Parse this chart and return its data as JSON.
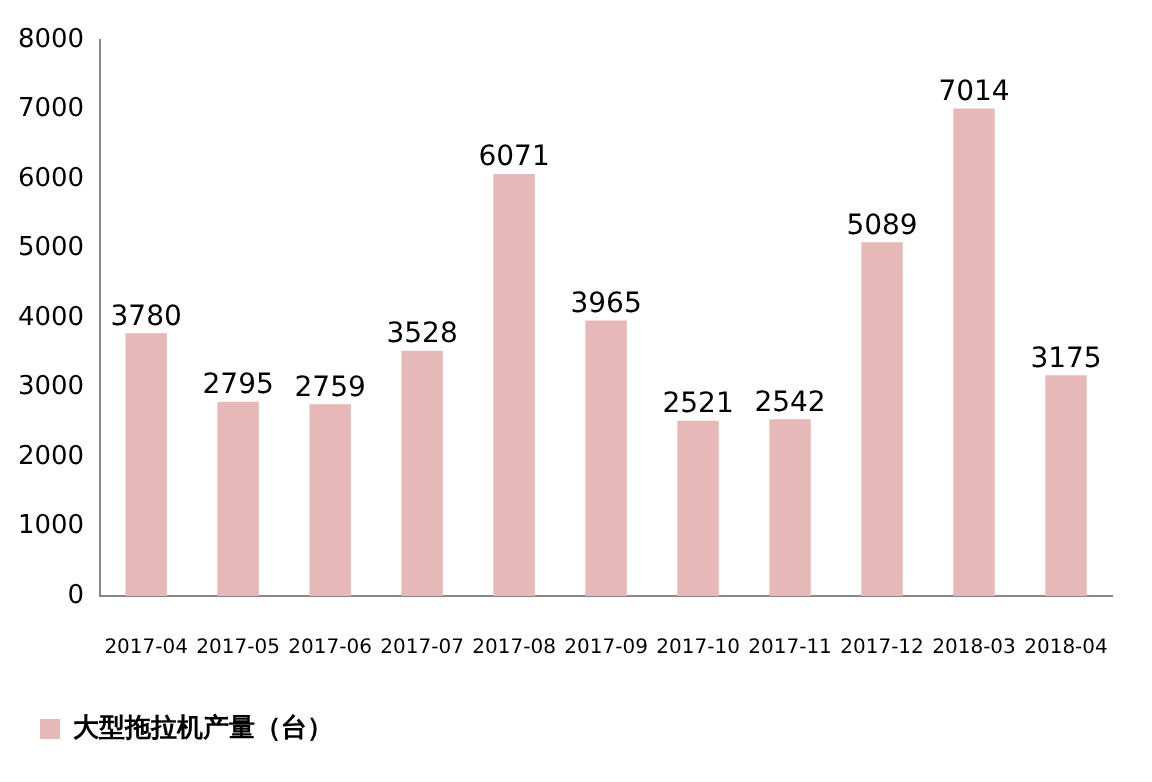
{
  "chart_data": {
    "type": "bar",
    "categories": [
      "2017-04",
      "2017-05",
      "2017-06",
      "2017-07",
      "2017-08",
      "2017-09",
      "2017-10",
      "2017-11",
      "2017-12",
      "2018-03",
      "2018-04"
    ],
    "series": [
      {
        "name": "大型拖拉机产量（台）",
        "color": "#e6b8b7",
        "values": [
          3780,
          2795,
          2759,
          3528,
          6071,
          3965,
          2521,
          2542,
          5089,
          7014,
          3175
        ]
      }
    ],
    "ylim": [
      0,
      8000
    ],
    "yticks": [
      0,
      1000,
      2000,
      3000,
      4000,
      5000,
      6000,
      7000,
      8000
    ],
    "grid": false,
    "legend": "bottom left",
    "data_labels": true
  }
}
